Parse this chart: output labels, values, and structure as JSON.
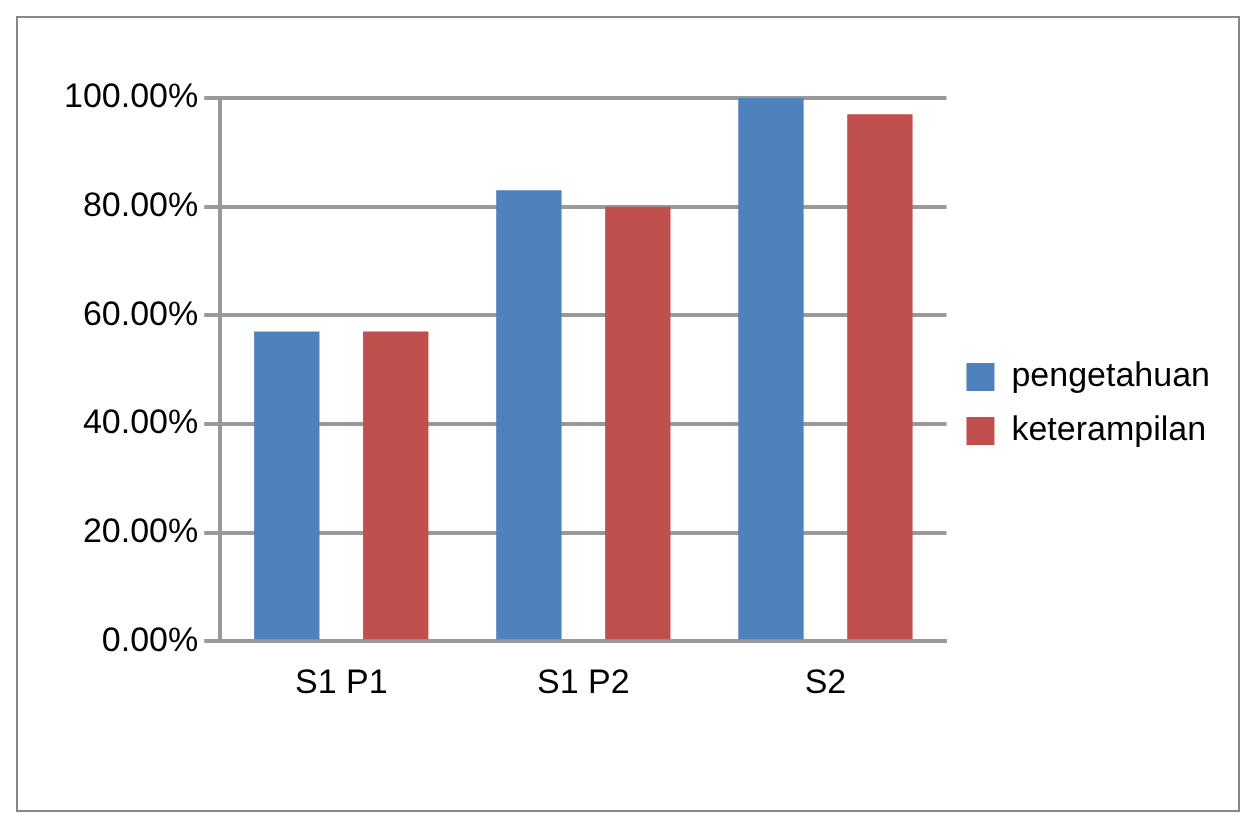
{
  "chart_data": {
    "type": "bar",
    "categories": [
      "S1 P1",
      "S1 P2",
      "S2"
    ],
    "series": [
      {
        "name": "pengetahuan",
        "color": "#4f81bd",
        "values": [
          57,
          83,
          100
        ]
      },
      {
        "name": "keterampilan",
        "color": "#c0504d",
        "values": [
          57,
          80,
          97
        ]
      }
    ],
    "ylim": [
      0,
      100
    ],
    "yticks": [
      {
        "value": 0,
        "label": "0.00%"
      },
      {
        "value": 20,
        "label": "20.00%"
      },
      {
        "value": 40,
        "label": "40.00%"
      },
      {
        "value": 60,
        "label": "60.00%"
      },
      {
        "value": 80,
        "label": "80.00%"
      },
      {
        "value": 100,
        "label": "100.00%"
      }
    ],
    "grid": "y",
    "legend": "right"
  }
}
